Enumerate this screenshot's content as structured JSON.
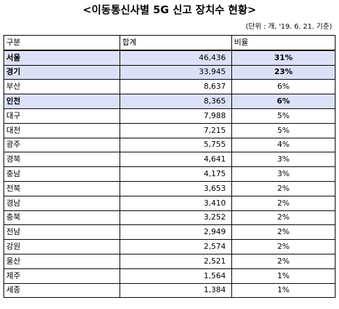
{
  "title": "<이동통신사별 5G 신고 장치수 현황>",
  "unit_note": "(단위 : 개, '19. 6. 21. 기준)",
  "headers": {
    "region": "구분",
    "total": "합계",
    "ratio": "비율"
  },
  "rows": [
    {
      "region": "서울",
      "total": "46,436",
      "ratio": "31%",
      "highlight": true
    },
    {
      "region": "경기",
      "total": "33,945",
      "ratio": "23%",
      "highlight": true
    },
    {
      "region": "부산",
      "total": "8,637",
      "ratio": "6%",
      "highlight": false
    },
    {
      "region": "인천",
      "total": "8,365",
      "ratio": "6%",
      "highlight": true
    },
    {
      "region": "대구",
      "total": "7,988",
      "ratio": "5%",
      "highlight": false
    },
    {
      "region": "대전",
      "total": "7,215",
      "ratio": "5%",
      "highlight": false
    },
    {
      "region": "광주",
      "total": "5,755",
      "ratio": "4%",
      "highlight": false
    },
    {
      "region": "경북",
      "total": "4,641",
      "ratio": "3%",
      "highlight": false
    },
    {
      "region": "충남",
      "total": "4,175",
      "ratio": "3%",
      "highlight": false
    },
    {
      "region": "전북",
      "total": "3,653",
      "ratio": "2%",
      "highlight": false
    },
    {
      "region": "경남",
      "total": "3,410",
      "ratio": "2%",
      "highlight": false
    },
    {
      "region": "충북",
      "total": "3,252",
      "ratio": "2%",
      "highlight": false
    },
    {
      "region": "전남",
      "total": "2,949",
      "ratio": "2%",
      "highlight": false
    },
    {
      "region": "강원",
      "total": "2,574",
      "ratio": "2%",
      "highlight": false
    },
    {
      "region": "울산",
      "total": "2,521",
      "ratio": "2%",
      "highlight": false
    },
    {
      "region": "제주",
      "total": "1,564",
      "ratio": "1%",
      "highlight": false
    },
    {
      "region": "세종",
      "total": "1,384",
      "ratio": "1%",
      "highlight": false
    }
  ],
  "colors": {
    "highlight_row": "#dce1f7"
  }
}
